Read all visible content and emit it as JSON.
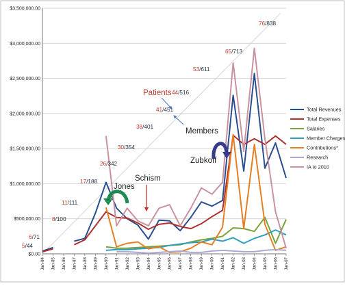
{
  "chart_data": {
    "type": "line",
    "categories": [
      "Jan-84",
      "Jan-85",
      "Jan-86",
      "Jan-87",
      "Jan-88",
      "Jan-89",
      "Jan-90",
      "Jan-91",
      "Jan-92",
      "Jan-93",
      "Jan-94",
      "Jan-95",
      "Jan-96",
      "Jan-97",
      "Jan-98",
      "Jan-99",
      "Jan-00",
      "Jan-01",
      "Jan-02",
      "Jan-03",
      "Jan-04",
      "Jan-05",
      "Jan-06",
      "Jan-07"
    ],
    "ylim": [
      0,
      3500000
    ],
    "yticks": [
      "$0.00",
      "$500,000.00",
      "$1,000,000.00",
      "$1,500,000.00",
      "$2,000,000.00",
      "$2,500,000.00",
      "$3,000,000.00",
      "$3,500,000.00"
    ],
    "ytick_values": [
      0,
      500000,
      1000000,
      1500000,
      2000000,
      2500000,
      3000000,
      3500000
    ],
    "legend_position": "right",
    "series": [
      {
        "name": "Total Revenues",
        "color": "#2a4f8f",
        "values": [
          40000,
          90000,
          null,
          180000,
          220000,
          580000,
          1020000,
          650000,
          500000,
          410000,
          210000,
          480000,
          470000,
          330000,
          520000,
          740000,
          680000,
          760000,
          2260000,
          1180000,
          2570000,
          1220000,
          1580000,
          1080000
        ]
      },
      {
        "name": "Total Expenses",
        "color": "#b0302e",
        "values": [
          30000,
          70000,
          null,
          130000,
          200000,
          400000,
          600000,
          520000,
          510000,
          440000,
          350000,
          420000,
          440000,
          390000,
          360000,
          430000,
          530000,
          620000,
          1690000,
          1560000,
          1640000,
          1560000,
          1680000,
          1560000
        ]
      },
      {
        "name": "Salaries",
        "color": "#77a33a",
        "values": [
          null,
          null,
          null,
          null,
          null,
          null,
          100000,
          80000,
          80000,
          90000,
          100000,
          110000,
          120000,
          130000,
          170000,
          200000,
          220000,
          250000,
          370000,
          360000,
          320000,
          520000,
          150000,
          490000
        ]
      },
      {
        "name": "Member Charges",
        "color": "#2f9fbf",
        "values": [
          null,
          null,
          null,
          null,
          null,
          null,
          50000,
          60000,
          60000,
          70000,
          80000,
          90000,
          120000,
          140000,
          160000,
          170000,
          210000,
          180000,
          230000,
          150000,
          220000,
          270000,
          340000,
          270000
        ]
      },
      {
        "name": "Contributions*",
        "color": "#e67e22",
        "values": [
          null,
          null,
          null,
          null,
          null,
          null,
          660000,
          100000,
          150000,
          170000,
          70000,
          100000,
          20000,
          30000,
          80000,
          170000,
          130000,
          380000,
          1700000,
          360000,
          1560000,
          420000,
          50000,
          100000
        ]
      },
      {
        "name": "Research",
        "color": "#a9a9d3",
        "values": [
          null,
          null,
          null,
          null,
          null,
          null,
          null,
          30000,
          30000,
          20000,
          10000,
          20000,
          30000,
          40000,
          20000,
          20000,
          40000,
          50000,
          40000,
          30000,
          30000,
          50000,
          60000,
          50000
        ]
      },
      {
        "name": "IA to 2010",
        "color": "#c9929e",
        "values": [
          null,
          null,
          null,
          null,
          null,
          null,
          1680000,
          400000,
          650000,
          470000,
          400000,
          650000,
          700000,
          400000,
          650000,
          940000,
          850000,
          1020000,
          2720000,
          1460000,
          2930000,
          1640000,
          600000,
          80000
        ]
      }
    ],
    "ratio_labels": [
      {
        "members": "5",
        "patients": "44"
      },
      {
        "members": "6",
        "patients": "71"
      },
      {
        "members": "8",
        "patients": "100"
      },
      {
        "members": "11",
        "patients": "111"
      },
      {
        "members": "17",
        "patients": "188"
      },
      {
        "members": "26",
        "patients": "342"
      },
      {
        "members": "30",
        "patients": "354"
      },
      {
        "members": "38",
        "patients": "401"
      },
      {
        "members": "41",
        "patients": "451"
      },
      {
        "members": "44",
        "patients": "516"
      },
      {
        "members": "53",
        "patients": "611"
      },
      {
        "members": "65",
        "patients": "713"
      },
      {
        "members": "76",
        "patients": "838"
      }
    ],
    "annotations": {
      "patients": "Patients",
      "members": "Members",
      "jones": "Jones",
      "schism": "Schism",
      "zubkoff": "Zubkoff"
    }
  }
}
